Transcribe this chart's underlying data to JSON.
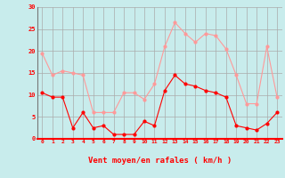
{
  "hours": [
    0,
    1,
    2,
    3,
    4,
    5,
    6,
    7,
    8,
    9,
    10,
    11,
    12,
    13,
    14,
    15,
    16,
    17,
    18,
    19,
    20,
    21,
    22,
    23
  ],
  "wind_mean": [
    10.5,
    9.5,
    9.5,
    2.5,
    6.0,
    2.5,
    3.0,
    1.0,
    1.0,
    1.0,
    4.0,
    3.0,
    11.0,
    14.5,
    12.5,
    12.0,
    11.0,
    10.5,
    9.5,
    3.0,
    2.5,
    2.0,
    3.5,
    6.0
  ],
  "wind_gust": [
    19.5,
    14.5,
    15.5,
    15.0,
    14.5,
    6.0,
    6.0,
    6.0,
    10.5,
    10.5,
    9.0,
    12.5,
    21.0,
    26.5,
    24.0,
    22.0,
    24.0,
    23.5,
    20.5,
    14.5,
    8.0,
    8.0,
    21.0,
    9.5
  ],
  "mean_color": "#ff0000",
  "gust_color": "#ff9999",
  "bg_color": "#c8ecec",
  "grid_color": "#aaaaaa",
  "xlabel": "Vent moyen/en rafales ( km/h )",
  "ylim": [
    0,
    30
  ],
  "yticks": [
    0,
    5,
    10,
    15,
    20,
    25,
    30
  ],
  "arrows": [
    "↙",
    "↙",
    "↙",
    "↙",
    "↙",
    "↙",
    "↙",
    " ",
    " ",
    "↓",
    "↙",
    "↑",
    "↑",
    "↑",
    "↑",
    "↑",
    "↗",
    "↗",
    "↗",
    "↗",
    "↑",
    "↗",
    "↗",
    "↗"
  ]
}
